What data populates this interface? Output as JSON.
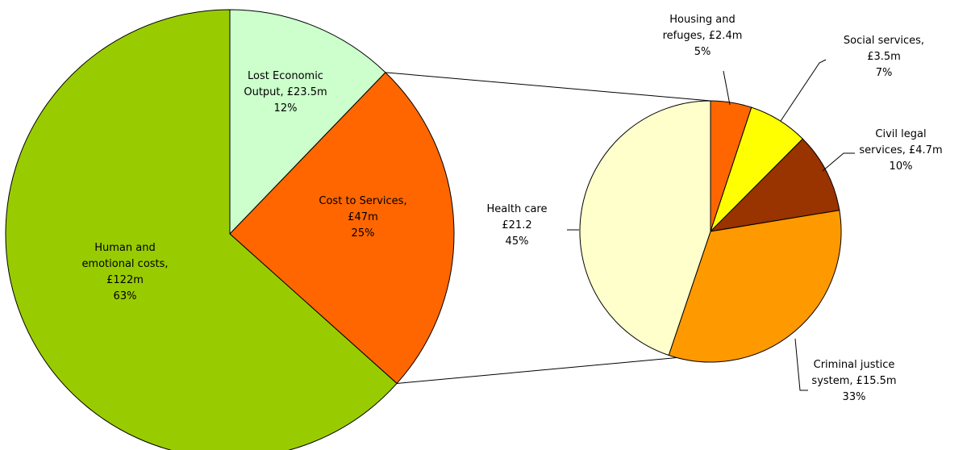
{
  "chart_data": [
    {
      "type": "pie",
      "title": "",
      "slices": [
        {
          "label": [
            "Lost Economic",
            "Output, £23.5m",
            "12%"
          ],
          "value": 23.5,
          "percent": 12,
          "color": "#ccffcc"
        },
        {
          "label": [
            "Cost to Services,",
            "£47m",
            "25%"
          ],
          "value": 47,
          "percent": 25,
          "color": "#ff6600"
        },
        {
          "label": [
            "Human and",
            "emotional costs,",
            "£122m",
            "63%"
          ],
          "value": 122,
          "percent": 63,
          "color": "#99cc00"
        }
      ],
      "exploded_slice": "Cost to Services"
    },
    {
      "type": "pie",
      "title": "",
      "breakdown_of": "Cost to Services",
      "slices": [
        {
          "label": [
            "Housing and",
            "refuges, £2.4m",
            "5%"
          ],
          "value": 2.4,
          "percent": 5,
          "color": "#ff6600"
        },
        {
          "label": [
            "Social services,",
            "£3.5m",
            "7%"
          ],
          "value": 3.5,
          "percent": 7,
          "color": "#ffff00"
        },
        {
          "label": [
            "Civil legal",
            "services, £4.7m",
            "10%"
          ],
          "value": 4.7,
          "percent": 10,
          "color": "#993300"
        },
        {
          "label": [
            "Criminal justice",
            "system, £15.5m",
            "33%"
          ],
          "value": 15.5,
          "percent": 33,
          "color": "#ff9900"
        },
        {
          "label": [
            "Health care",
            "£21.2",
            "45%"
          ],
          "value": 21.2,
          "percent": 45,
          "color": "#ffffcc"
        }
      ]
    }
  ]
}
